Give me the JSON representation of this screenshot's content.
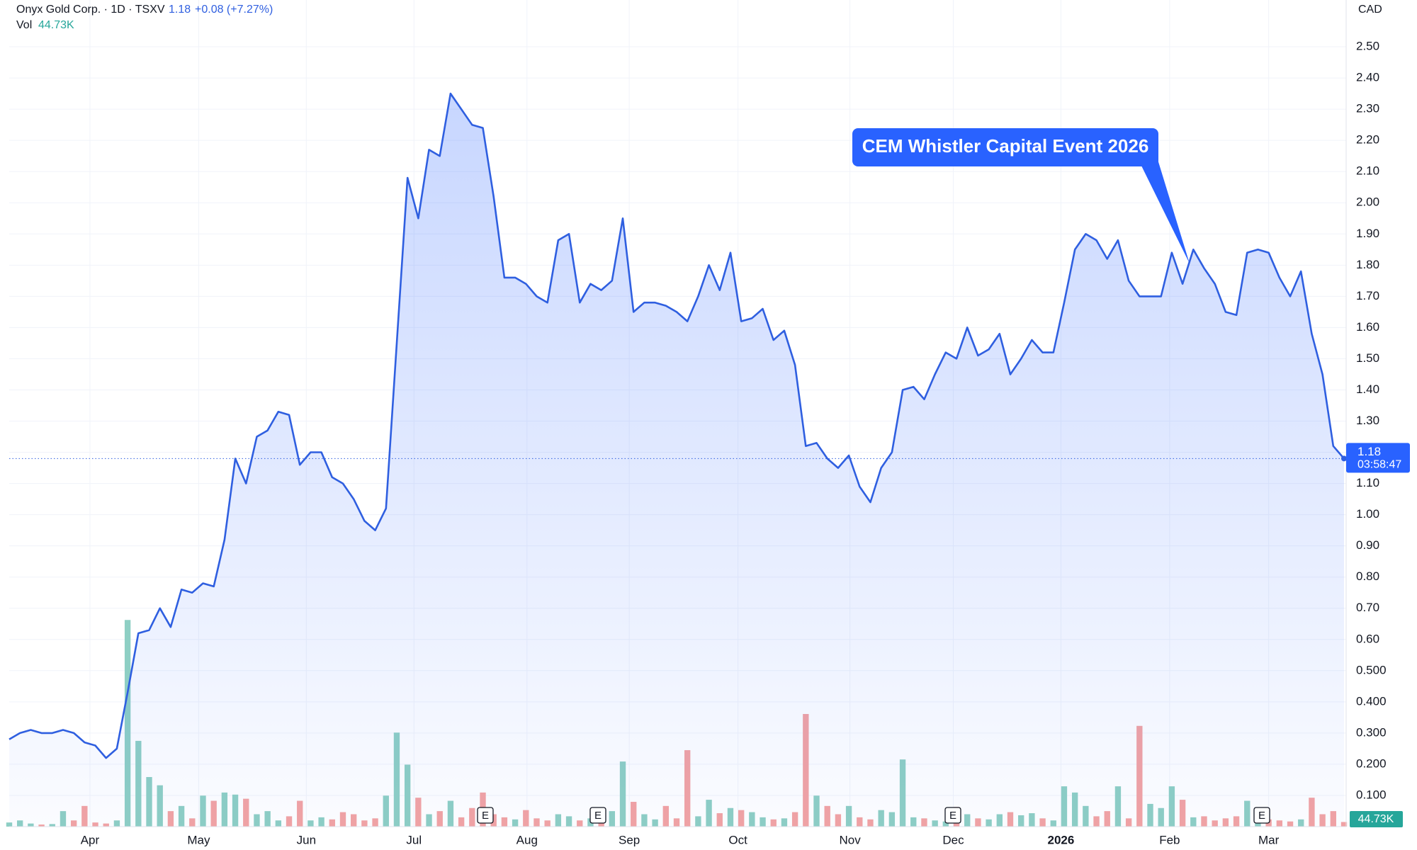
{
  "chart_data": {
    "type": "area",
    "currency": "CAD",
    "last_price": 1.18,
    "change": "+0.08 (+7.27%)",
    "countdown": "03:58:47",
    "volume_label": "44.73K",
    "annotation": "CEM Whistler Capital Event 2026",
    "earnings_markers": [
      "E",
      "E",
      "E",
      "E"
    ],
    "line_color": "#2f5fe0",
    "up_color": "#8ecfc4",
    "down_color": "#f3a3a3",
    "grid": true,
    "xlim": [
      0,
      124
    ],
    "xticks": [
      {
        "value": 7.5,
        "label": "Apr"
      },
      {
        "value": 17.6,
        "label": "May"
      },
      {
        "value": 27.6,
        "label": "Jun"
      },
      {
        "value": 37.6,
        "label": "Jul"
      },
      {
        "value": 48.1,
        "label": "Aug"
      },
      {
        "value": 57.6,
        "label": "Sep"
      },
      {
        "value": 67.7,
        "label": "Oct"
      },
      {
        "value": 78.1,
        "label": "Nov"
      },
      {
        "value": 87.7,
        "label": "Dec"
      },
      {
        "value": 97.7,
        "label": "2026",
        "bold": true
      },
      {
        "value": 107.8,
        "label": "Feb"
      },
      {
        "value": 117.0,
        "label": "Mar"
      }
    ],
    "ylim": [
      0,
      2.65
    ],
    "yticks": [
      {
        "value": 0.1,
        "label": "0.100"
      },
      {
        "value": 0.2,
        "label": "0.200"
      },
      {
        "value": 0.3,
        "label": "0.300"
      },
      {
        "value": 0.4,
        "label": "0.400"
      },
      {
        "value": 0.5,
        "label": "0.500"
      },
      {
        "value": 0.6,
        "label": "0.60"
      },
      {
        "value": 0.7,
        "label": "0.70"
      },
      {
        "value": 0.8,
        "label": "0.80"
      },
      {
        "value": 0.9,
        "label": "0.90"
      },
      {
        "value": 1.0,
        "label": "1.00"
      },
      {
        "value": 1.1,
        "label": "1.10"
      },
      {
        "value": 1.2,
        "label": "1.20"
      },
      {
        "value": 1.3,
        "label": "1.30"
      },
      {
        "value": 1.4,
        "label": "1.40"
      },
      {
        "value": 1.5,
        "label": "1.50"
      },
      {
        "value": 1.6,
        "label": "1.60"
      },
      {
        "value": 1.7,
        "label": "1.70"
      },
      {
        "value": 1.8,
        "label": "1.80"
      },
      {
        "value": 1.9,
        "label": "1.90"
      },
      {
        "value": 2.0,
        "label": "2.00"
      },
      {
        "value": 2.1,
        "label": "2.10"
      },
      {
        "value": 2.2,
        "label": "2.20"
      },
      {
        "value": 2.3,
        "label": "2.30"
      },
      {
        "value": 2.4,
        "label": "2.40"
      },
      {
        "value": 2.5,
        "label": "2.50"
      }
    ],
    "y2lim": [
      0,
      8000
    ],
    "series": [
      {
        "name": "Onyx Gold Corp. · 1D · TSXV",
        "values": [
          0.28,
          0.3,
          0.31,
          0.3,
          0.3,
          0.31,
          0.3,
          0.27,
          0.26,
          0.22,
          0.25,
          0.43,
          0.62,
          0.63,
          0.7,
          0.64,
          0.76,
          0.75,
          0.78,
          0.77,
          0.92,
          1.18,
          1.1,
          1.25,
          1.27,
          1.33,
          1.32,
          1.16,
          1.2,
          1.2,
          1.12,
          1.1,
          1.05,
          0.98,
          0.95,
          1.02,
          1.55,
          2.08,
          1.95,
          2.17,
          2.15,
          2.35,
          2.3,
          2.25,
          2.24,
          2.02,
          1.76,
          1.76,
          1.74,
          1.7,
          1.68,
          1.88,
          1.9,
          1.68,
          1.74,
          1.72,
          1.75,
          1.95,
          1.65,
          1.68,
          1.68,
          1.67,
          1.65,
          1.62,
          1.7,
          1.8,
          1.72,
          1.84,
          1.62,
          1.63,
          1.66,
          1.56,
          1.59,
          1.48,
          1.22,
          1.23,
          1.18,
          1.15,
          1.19,
          1.09,
          1.04,
          1.15,
          1.2,
          1.4,
          1.41,
          1.37,
          1.45,
          1.52,
          1.5,
          1.6,
          1.51,
          1.53,
          1.58,
          1.45,
          1.5,
          1.56,
          1.52,
          1.52,
          1.68,
          1.85,
          1.9,
          1.88,
          1.82,
          1.88,
          1.75,
          1.7,
          1.7,
          1.7,
          1.84,
          1.74,
          1.85,
          1.79,
          1.74,
          1.65,
          1.64,
          1.84,
          1.85,
          1.84,
          1.76,
          1.7,
          1.78,
          1.58,
          1.45,
          1.22,
          1.18
        ]
      },
      {
        "name": "Vol",
        "axis": "y2",
        "values": [
          40,
          60,
          30,
          20,
          25,
          150,
          60,
          200,
          40,
          30,
          60,
          2000,
          830,
          480,
          400,
          150,
          200,
          80,
          300,
          250,
          330,
          310,
          270,
          120,
          150,
          60,
          100,
          250,
          60,
          90,
          70,
          140,
          120,
          60,
          80,
          300,
          910,
          600,
          280,
          120,
          150,
          250,
          90,
          180,
          330,
          120,
          90,
          70,
          160,
          80,
          60,
          120,
          100,
          60,
          80,
          40,
          150,
          630,
          240,
          120,
          70,
          200,
          80,
          740,
          100,
          260,
          130,
          180,
          160,
          140,
          90,
          70,
          80,
          140,
          1090,
          300,
          200,
          120,
          200,
          90,
          70,
          160,
          140,
          650,
          90,
          80,
          60,
          50,
          190,
          120,
          80,
          70,
          120,
          140,
          110,
          130,
          80,
          60,
          390,
          330,
          200,
          100,
          150,
          390,
          80,
          975,
          220,
          180,
          390,
          260,
          90,
          100,
          60,
          80,
          100,
          250,
          150,
          70,
          60,
          50,
          70,
          280,
          120,
          150,
          44.73
        ]
      }
    ]
  }
}
